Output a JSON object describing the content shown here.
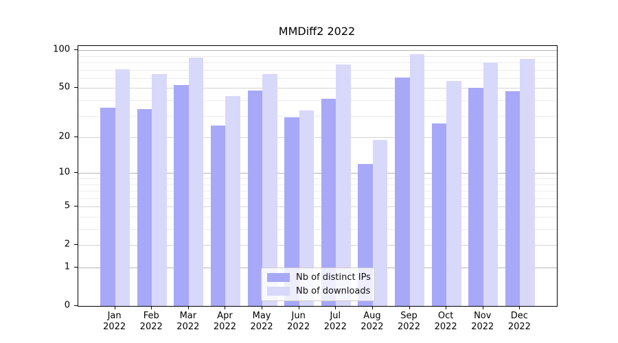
{
  "chart_data": {
    "type": "bar",
    "title": "MMDiff2 2022",
    "year_label": "2022",
    "months": [
      "Jan",
      "Feb",
      "Mar",
      "Apr",
      "May",
      "Jun",
      "Jul",
      "Aug",
      "Sep",
      "Oct",
      "Nov",
      "Dec"
    ],
    "series": [
      {
        "name": "Nb of distinct IPs",
        "color": "#a8a8f8",
        "values": [
          35,
          34,
          53,
          25,
          48,
          29,
          41,
          12,
          61,
          26,
          50,
          47
        ]
      },
      {
        "name": "Nb of downloads",
        "color": "#d8d8fa",
        "values": [
          71,
          65,
          87,
          43,
          65,
          33,
          77,
          19,
          93,
          57,
          80,
          85
        ]
      }
    ],
    "yscale": "log(x+1)",
    "ylim": [
      0,
      108
    ],
    "y_tick_labels": [
      100,
      50,
      20,
      10,
      5,
      2,
      1,
      0
    ],
    "y_major_grid": [
      1,
      10,
      100
    ],
    "y_mid_grid": [
      2,
      5,
      20,
      50
    ],
    "y_minor_grid": [
      3,
      4,
      6,
      7,
      8,
      9,
      30,
      40,
      60,
      70,
      80,
      90
    ],
    "grid": "on",
    "legend_position": "lower center",
    "bar_width_fraction": 0.4
  }
}
